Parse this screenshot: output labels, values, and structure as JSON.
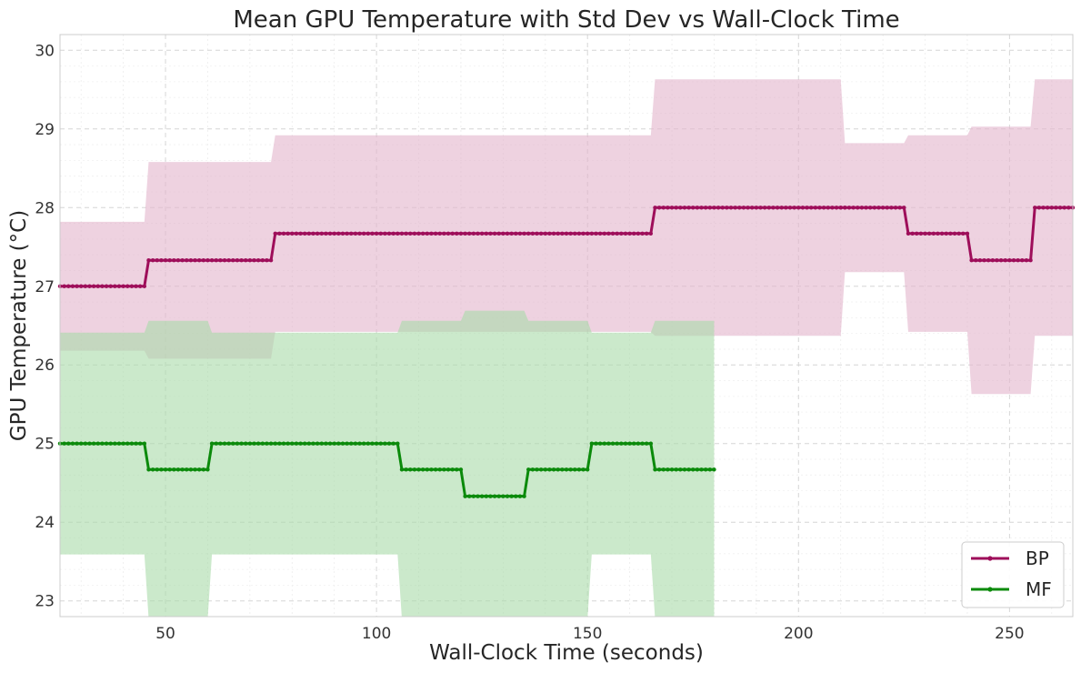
{
  "chart_data": {
    "type": "line",
    "title": "Mean GPU Temperature with Std Dev vs Wall-Clock Time",
    "xlabel": "Wall-Clock Time (seconds)",
    "ylabel": "GPU Temperature (°C)",
    "xlim": [
      25,
      265
    ],
    "ylim": [
      22.8,
      30.2
    ],
    "xticks": [
      50,
      100,
      150,
      200,
      250
    ],
    "yticks": [
      23,
      24,
      25,
      26,
      27,
      28,
      29,
      30
    ],
    "grid": true,
    "legend_position": "bottom-right",
    "series": [
      {
        "name": "BP",
        "color": "#9e0e5a",
        "band_color": "#e2b4cb",
        "x": [
          25,
          45,
          46,
          75,
          76,
          165,
          166,
          210,
          211,
          225,
          226,
          240,
          241,
          255,
          256,
          265
        ],
        "y": [
          27.0,
          27.0,
          27.33,
          27.33,
          27.67,
          27.67,
          28.0,
          28.0,
          28.0,
          28.0,
          27.67,
          27.67,
          27.33,
          27.33,
          28.0,
          28.0
        ],
        "std": [
          0.82,
          0.82,
          1.25,
          1.25,
          1.25,
          1.25,
          1.63,
          1.63,
          0.82,
          0.82,
          1.25,
          1.25,
          1.7,
          1.7,
          1.63,
          1.63
        ]
      },
      {
        "name": "MF",
        "color": "#0b8a0b",
        "band_color": "#a9dba9",
        "x": [
          25,
          45,
          46,
          60,
          61,
          105,
          106,
          120,
          121,
          135,
          136,
          150,
          151,
          165,
          166,
          180
        ],
        "y": [
          25.0,
          25.0,
          24.67,
          24.67,
          25.0,
          25.0,
          24.67,
          24.67,
          24.33,
          24.33,
          24.67,
          24.67,
          25.0,
          25.0,
          24.67,
          24.67
        ],
        "std": [
          1.41,
          1.41,
          1.89,
          1.89,
          1.41,
          1.41,
          1.89,
          1.89,
          2.36,
          2.36,
          1.89,
          1.89,
          1.41,
          1.41,
          1.89,
          1.89
        ]
      }
    ]
  }
}
